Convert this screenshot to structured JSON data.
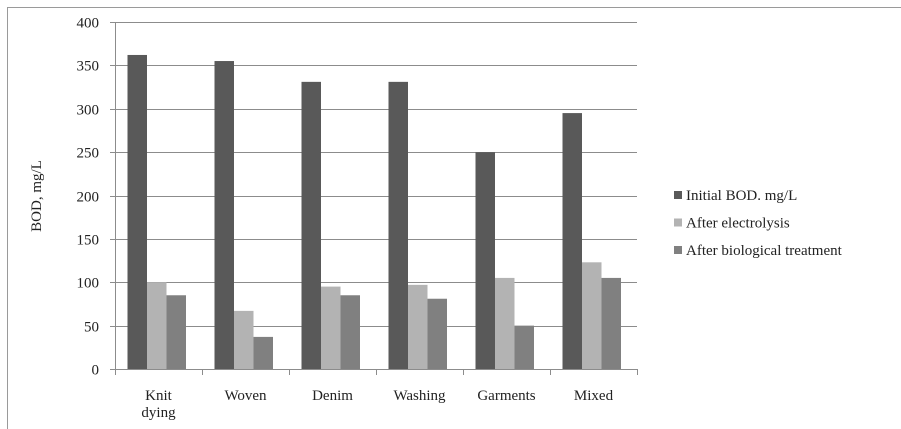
{
  "chart_data": {
    "type": "bar",
    "title": "",
    "xlabel": "",
    "ylabel": "BOD, mg/L",
    "ylim": [
      0,
      400
    ],
    "yticks": [
      0,
      50,
      100,
      150,
      200,
      250,
      300,
      350,
      400
    ],
    "grid": true,
    "legend_position": "right",
    "categories": [
      [
        "Knit",
        "dying"
      ],
      [
        "Woven"
      ],
      [
        "Denim"
      ],
      [
        "Washing"
      ],
      [
        "Garments"
      ],
      [
        "Mixed"
      ]
    ],
    "series": [
      {
        "name": "Initial BOD. mg/L",
        "color": "#595959",
        "values": [
          362,
          355,
          331,
          331,
          250,
          295
        ]
      },
      {
        "name": "After electrolysis",
        "color": "#b3b3b3",
        "values": [
          100,
          67,
          95,
          97,
          105,
          123
        ]
      },
      {
        "name": "After biological treatment",
        "color": "#808080",
        "values": [
          85,
          37,
          85,
          81,
          50,
          105
        ]
      }
    ]
  }
}
